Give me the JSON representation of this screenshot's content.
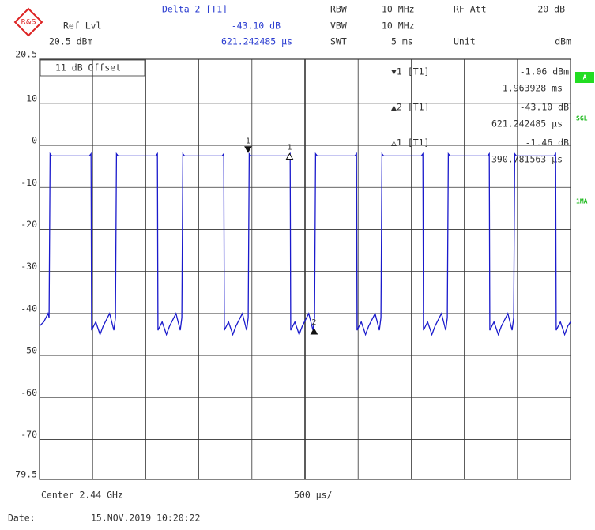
{
  "chart_data": {
    "type": "line",
    "header": {
      "delta_title": "Delta 2 [T1]",
      "delta_value": "-43.10 dB",
      "delta_time": "621.242485 µs",
      "ref_label": "Ref Lvl",
      "ref_value": "20.5 dBm",
      "rbw_label": "RBW",
      "rbw_value": "10 MHz",
      "vbw_label": "VBW",
      "vbw_value": "10 MHz",
      "swt_label": "SWT",
      "swt_value": "5 ms",
      "att_label": "RF Att",
      "att_value": "20 dB",
      "unit_label": "Unit",
      "unit_value": "dBm"
    },
    "offset_note": "11 dB Offset",
    "side_labels": [
      "A",
      "SGL",
      "1MA"
    ],
    "marker_table": [
      {
        "name": "▼1 [T1]",
        "level": "-1.06 dBm",
        "time": "1.963928 ms"
      },
      {
        "name": "▲2 [T1]",
        "level": "-43.10 dB",
        "time": "621.242485 µs"
      },
      {
        "name": "△1 [T1]",
        "level": "-1.46 dB",
        "time": "390.781563 µs"
      }
    ],
    "footer": {
      "center": "Center 2.44 GHz",
      "span": "500 µs/",
      "date_label": "Date:",
      "date": "15.NOV.2019  10:20:22"
    },
    "xlim": [
      0,
      5
    ],
    "ylim": [
      -79.5,
      20.5
    ],
    "yticks": [
      20.5,
      10,
      0,
      -10,
      -20,
      -30,
      -40,
      -50,
      -60,
      -70,
      -79.5
    ],
    "grid": true,
    "x": [
      0,
      0.04,
      0.08,
      0.09,
      0.1,
      0.115,
      0.47,
      0.485,
      0.49,
      0.53,
      0.57,
      0.6,
      0.66,
      0.7,
      0.715,
      0.725,
      0.74,
      1.095,
      1.11,
      1.115,
      1.155,
      1.195,
      1.225,
      1.285,
      1.325,
      1.34,
      1.35,
      1.365,
      1.72,
      1.735,
      1.74,
      1.78,
      1.82,
      1.85,
      1.91,
      1.95,
      1.965,
      1.975,
      1.99,
      2.345,
      2.36,
      2.365,
      2.405,
      2.445,
      2.475,
      2.535,
      2.575,
      2.59,
      2.6,
      2.615,
      2.97,
      2.985,
      2.99,
      3.03,
      3.07,
      3.1,
      3.16,
      3.2,
      3.215,
      3.225,
      3.24,
      3.595,
      3.61,
      3.615,
      3.655,
      3.695,
      3.725,
      3.785,
      3.825,
      3.84,
      3.85,
      3.865,
      4.22,
      4.235,
      4.24,
      4.28,
      4.32,
      4.35,
      4.41,
      4.45,
      4.465,
      4.475,
      4.49,
      4.845,
      4.86,
      4.865,
      4.905,
      4.945,
      4.975,
      5.0
    ],
    "series": [
      {
        "color": "#1a1acc",
        "values": [
          -43,
          -42,
          -40,
          -41,
          -2,
          -2.5,
          -2.5,
          -2,
          -44,
          -42,
          -45,
          -43,
          -40,
          -44,
          -41,
          -2,
          -2.5,
          -2.5,
          -2,
          -44,
          -42,
          -45,
          -43,
          -40,
          -44,
          -41,
          -2,
          -2.5,
          -2.5,
          -2,
          -44,
          -42,
          -45,
          -43,
          -40,
          -44,
          -41,
          -2,
          -2.5,
          -2.5,
          -2,
          -44,
          -42,
          -45,
          -43,
          -40,
          -44,
          -41,
          -2,
          -2.5,
          -2.5,
          -2,
          -44,
          -42,
          -45,
          -43,
          -40,
          -44,
          -41,
          -2,
          -2.5,
          -2.5,
          -2,
          -44,
          -42,
          -45,
          -43,
          -40,
          -44,
          -41,
          -2,
          -2.5,
          -2.5,
          -2,
          -44,
          -42,
          -45,
          -43,
          -40,
          -44,
          -41,
          -2,
          -2.5,
          -2.5,
          -2,
          -44,
          -42,
          -45,
          -43,
          -42
        ]
      }
    ],
    "markers": [
      {
        "label": "1",
        "x": 1.963928,
        "y": -1.06,
        "shape": "filled-down"
      },
      {
        "label": "1",
        "x": 2.354709,
        "y": -2.52,
        "shape": "open-up"
      },
      {
        "label": "2",
        "x": 2.58517,
        "y": -44.16,
        "shape": "filled-up"
      }
    ]
  }
}
